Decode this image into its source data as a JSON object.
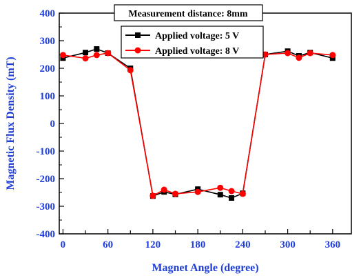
{
  "chart_data": {
    "type": "line",
    "xlabel": "Magnet Angle (degree)",
    "ylabel": "Magnetic Flux Density (mT)",
    "annotation": "Measurement distance: 8mm",
    "xlim": [
      -5,
      385
    ],
    "ylim": [
      -400,
      400
    ],
    "xticks": [
      "0",
      "30",
      "60",
      "90",
      "120",
      "150",
      "180",
      "210",
      "240",
      "270",
      "300",
      "330",
      "360"
    ],
    "xtick_labels": [
      "0",
      "60",
      "120",
      "180",
      "240",
      "300",
      "360"
    ],
    "yticks": [
      "400",
      "300",
      "200",
      "100",
      "0",
      "-100",
      "-200",
      "-300",
      "-400"
    ],
    "legend_position": "top-right",
    "series": [
      {
        "name": "Applied voltage: 5 V",
        "color": "#000000",
        "marker": "square",
        "x": [
          0,
          30,
          45,
          60,
          90,
          120,
          135,
          150,
          180,
          210,
          225,
          240,
          270,
          300,
          315,
          330,
          360
        ],
        "values": [
          237,
          257,
          270,
          255,
          200,
          -263,
          -248,
          -257,
          -238,
          -258,
          -270,
          -253,
          250,
          262,
          245,
          257,
          237
        ]
      },
      {
        "name": "Applied voltage: 8 V",
        "color": "#ff0000",
        "marker": "circle",
        "x": [
          0,
          30,
          45,
          60,
          90,
          120,
          135,
          150,
          180,
          210,
          225,
          240,
          270,
          300,
          315,
          330,
          360
        ],
        "values": [
          248,
          236,
          248,
          255,
          193,
          -262,
          -240,
          -255,
          -248,
          -233,
          -245,
          -255,
          250,
          255,
          238,
          255,
          248
        ]
      }
    ]
  }
}
